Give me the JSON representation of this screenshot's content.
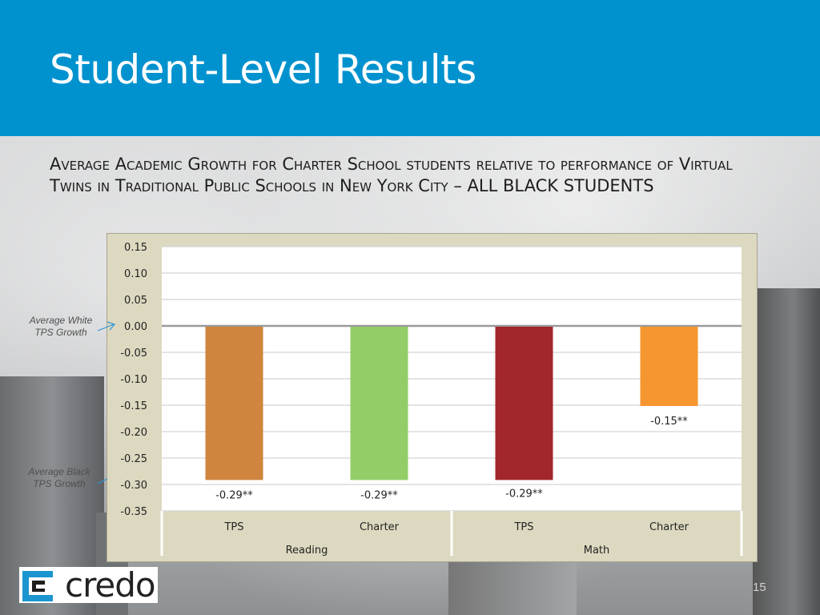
{
  "slide": {
    "title": "Student-Level Results",
    "subtitle": "Average Academic Growth for Charter School students relative to performance of Virtual Twins in Traditional Public Schools in New York City – ALL BLACK STUDENTS",
    "page_number": "15",
    "logo_text": "credo",
    "colors": {
      "header": "#0092cf",
      "panel": "#dcd9c0"
    }
  },
  "annotations": {
    "white": "Average White TPS Growth",
    "black": "Average Black TPS Growth"
  },
  "chart_data": {
    "type": "bar",
    "categories": [
      "TPS",
      "Charter",
      "TPS",
      "Charter"
    ],
    "groups": [
      {
        "label": "Reading",
        "categories": [
          "TPS",
          "Charter"
        ]
      },
      {
        "label": "Math",
        "categories": [
          "TPS",
          "Charter"
        ]
      }
    ],
    "values": [
      -0.29,
      -0.29,
      -0.29,
      -0.15
    ],
    "data_labels": [
      "-0.29**",
      "-0.29**",
      "-0.29**",
      "-0.15**"
    ],
    "colors": [
      "#cf853d",
      "#93cd68",
      "#a1272c",
      "#f59630"
    ],
    "ylim": [
      -0.35,
      0.15
    ],
    "yticks": [
      0.15,
      0.1,
      0.05,
      0.0,
      -0.05,
      -0.1,
      -0.15,
      -0.2,
      -0.25,
      -0.3,
      -0.35
    ],
    "ytick_labels": [
      "0.15",
      "0.10",
      "0.05",
      "0.00",
      "-0.05",
      "-0.10",
      "-0.15",
      "-0.20",
      "-0.25",
      "-0.30",
      "-0.35"
    ],
    "title": "",
    "xlabel": "",
    "ylabel": "",
    "grid": true,
    "legend": "none"
  }
}
